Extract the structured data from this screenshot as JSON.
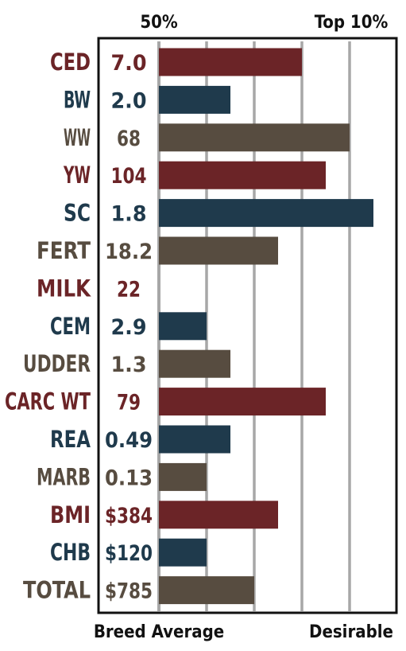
{
  "chart_data": {
    "type": "bar",
    "orientation": "horizontal",
    "top_labels": [
      "50%",
      "Top 10%"
    ],
    "bottom_labels": [
      "Breed Average",
      "Desirable"
    ],
    "grid": true,
    "colors": {
      "red": "#6b2427",
      "blue": "#1f3a4c",
      "brown": "#574c40"
    },
    "rows": [
      {
        "trait": "CED",
        "value": "7.0",
        "level": 3.0,
        "color": "red"
      },
      {
        "trait": "BW",
        "value": "2.0",
        "level": 1.5,
        "color": "blue"
      },
      {
        "trait": "WW",
        "value": "68",
        "level": 4.0,
        "color": "brown"
      },
      {
        "trait": "YW",
        "value": "104",
        "level": 3.5,
        "color": "red"
      },
      {
        "trait": "SC",
        "value": "1.8",
        "level": 4.5,
        "color": "blue"
      },
      {
        "trait": "FERT",
        "value": "18.2",
        "level": 2.5,
        "color": "brown"
      },
      {
        "trait": "MILK",
        "value": "22",
        "level": 0,
        "color": "red"
      },
      {
        "trait": "CEM",
        "value": "2.9",
        "level": 1.0,
        "color": "blue"
      },
      {
        "trait": "UDDER",
        "value": "1.3",
        "level": 1.5,
        "color": "brown"
      },
      {
        "trait": "CARC WT",
        "value": "79",
        "level": 3.5,
        "color": "red"
      },
      {
        "trait": "REA",
        "value": "0.49",
        "level": 1.5,
        "color": "blue"
      },
      {
        "trait": "MARB",
        "value": "0.13",
        "level": 1.0,
        "color": "brown"
      },
      {
        "trait": "BMI",
        "value": "$384",
        "level": 2.5,
        "color": "red"
      },
      {
        "trait": "CHB",
        "value": "$120",
        "level": 1.0,
        "color": "blue"
      },
      {
        "trait": "TOTAL",
        "value": "$785",
        "level": 2.0,
        "color": "brown"
      }
    ]
  }
}
